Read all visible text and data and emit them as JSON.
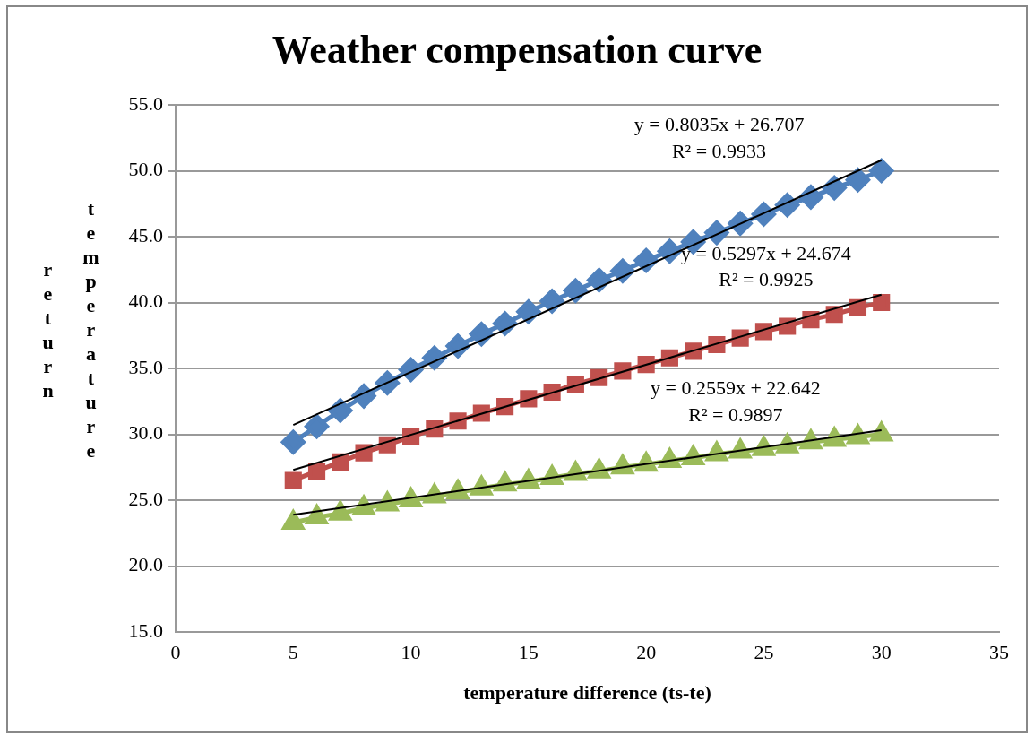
{
  "chart_data": {
    "type": "line",
    "title": "Weather compensation curve",
    "xlabel": "temperature difference (ts-te)",
    "ylabel": "return temperature",
    "series": [
      {
        "color": "#4f81bd",
        "marker": "diamond",
        "x": [
          5,
          6,
          7,
          8,
          9,
          10,
          11,
          12,
          13,
          14,
          15,
          16,
          17,
          18,
          19,
          20,
          21,
          22,
          23,
          24,
          25,
          26,
          27,
          28,
          29,
          30
        ],
        "values": [
          29.4,
          30.6,
          31.8,
          32.9,
          33.9,
          34.9,
          35.8,
          36.7,
          37.6,
          38.4,
          39.3,
          40.1,
          40.9,
          41.7,
          42.4,
          43.2,
          43.9,
          44.6,
          45.3,
          46.0,
          46.7,
          47.4,
          48.0,
          48.7,
          49.3,
          50.0
        ]
      },
      {
        "color": "#c0504d",
        "marker": "square",
        "x": [
          5,
          6,
          7,
          8,
          9,
          10,
          11,
          12,
          13,
          14,
          15,
          16,
          17,
          18,
          19,
          20,
          21,
          22,
          23,
          24,
          25,
          26,
          27,
          28,
          29,
          30
        ],
        "values": [
          26.5,
          27.2,
          27.9,
          28.6,
          29.2,
          29.8,
          30.4,
          31.0,
          31.6,
          32.1,
          32.7,
          33.2,
          33.8,
          34.3,
          34.8,
          35.3,
          35.8,
          36.3,
          36.8,
          37.3,
          37.8,
          38.2,
          38.7,
          39.1,
          39.6,
          40.0
        ]
      },
      {
        "color": "#9bbb59",
        "marker": "triangle",
        "x": [
          5,
          6,
          7,
          8,
          9,
          10,
          11,
          12,
          13,
          14,
          15,
          16,
          17,
          18,
          19,
          20,
          21,
          22,
          23,
          24,
          25,
          26,
          27,
          28,
          29,
          30
        ],
        "values": [
          23.3,
          23.7,
          24.0,
          24.4,
          24.7,
          25.0,
          25.3,
          25.6,
          25.9,
          26.2,
          26.4,
          26.7,
          27.0,
          27.2,
          27.5,
          27.7,
          28.0,
          28.2,
          28.5,
          28.7,
          28.9,
          29.1,
          29.4,
          29.6,
          29.8,
          30.0
        ]
      },
      {
        "type": "line",
        "color": "#000000",
        "marker": "none",
        "x": [
          5,
          30
        ],
        "values": [
          30.7,
          50.8
        ]
      },
      {
        "type": "line",
        "color": "#000000",
        "marker": "none",
        "x": [
          5,
          30
        ],
        "values": [
          27.3,
          40.6
        ]
      },
      {
        "type": "line",
        "color": "#000000",
        "marker": "none",
        "x": [
          5,
          30
        ],
        "values": [
          23.9,
          30.3
        ]
      }
    ],
    "xlim": [
      0,
      35
    ],
    "xticks": [
      0,
      5,
      10,
      15,
      20,
      25,
      30,
      35
    ],
    "ylim": [
      15,
      55
    ],
    "yticks": [
      {
        "value": 15,
        "label": "15.0"
      },
      {
        "value": 20,
        "label": "20.0"
      },
      {
        "value": 25,
        "label": "25.0"
      },
      {
        "value": 30,
        "label": "30.0"
      },
      {
        "value": 35,
        "label": "35.0"
      },
      {
        "value": 40,
        "label": "40.0"
      },
      {
        "value": 45,
        "label": "45.0"
      },
      {
        "value": 50,
        "label": "50.0"
      },
      {
        "value": 55,
        "label": "55.0"
      }
    ],
    "grid": "y",
    "legend": false,
    "line_style": "solid",
    "annotations": [
      "y = 0.8035x + 26.707",
      "R² = 0.9933",
      "y = 0.5297x + 24.674",
      "R² = 0.9925",
      "y = 0.2559x + 22.642",
      "R² = 0.9897"
    ]
  }
}
